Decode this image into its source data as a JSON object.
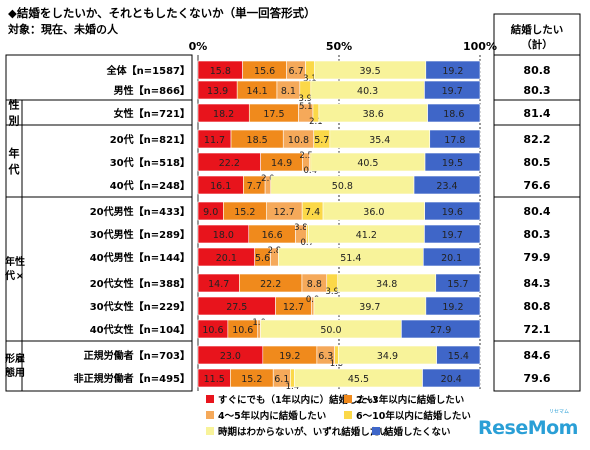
{
  "title": "◆結婚をしたいか、それともしたくないか（単一回答形式）",
  "subtitle": "対象：現在、未婚の人",
  "right_header": [
    "結婚したい",
    "（計）"
  ],
  "watermark": {
    "text": "ReseMom",
    "ruby": "リセマム"
  },
  "chart_data": {
    "type": "bar",
    "orientation": "horizontal",
    "stacked": true,
    "xlim": [
      0,
      100
    ],
    "x_ticks": [
      "0%",
      "50%",
      "100%"
    ],
    "colors": [
      "#e8141c",
      "#f08a1c",
      "#f5a95a",
      "#fbd848",
      "#f8f39a",
      "#3f66c8"
    ],
    "legend_position": "bottom",
    "series": [
      {
        "name": "すぐにでも（1年以内に）結婚したい"
      },
      {
        "name": "2～3年以内に結婚したい"
      },
      {
        "name": "4～5年以内に結婚したい"
      },
      {
        "name": "6～10年以内に結婚したい"
      },
      {
        "name": "時期はわからないが、いずれ結婚したい"
      },
      {
        "name": "結婚したくない"
      }
    ],
    "groups": [
      {
        "label": "",
        "rows": [
          0
        ]
      },
      {
        "label": "性別",
        "rows": [
          1,
          2
        ]
      },
      {
        "label": "年代",
        "rows": [
          3,
          4,
          5
        ]
      },
      {
        "label": "性×年代",
        "rows": [
          6,
          7,
          8,
          9,
          10,
          11
        ]
      },
      {
        "label": "雇用形態",
        "rows": [
          12,
          13
        ]
      }
    ],
    "rows": [
      {
        "label": "全体【n=1587】",
        "values": [
          15.8,
          15.6,
          6.7,
          3.1,
          39.5,
          19.2
        ],
        "total": "80.8"
      },
      {
        "label": "男性【n=866】",
        "values": [
          13.9,
          14.1,
          8.1,
          3.9,
          40.3,
          19.7
        ],
        "total": "80.3"
      },
      {
        "label": "女性【n=721】",
        "values": [
          18.2,
          17.5,
          5.1,
          2.1,
          38.6,
          18.6
        ],
        "total": "81.4"
      },
      {
        "label": "20代【n=821】",
        "values": [
          11.7,
          18.5,
          10.8,
          5.7,
          35.4,
          17.8
        ],
        "total": "82.2"
      },
      {
        "label": "30代【n=518】",
        "values": [
          22.2,
          14.9,
          2.5,
          0.4,
          40.5,
          19.5
        ],
        "total": "80.5"
      },
      {
        "label": "40代【n=248】",
        "values": [
          16.1,
          7.7,
          2.0,
          0.0,
          50.8,
          23.4
        ],
        "total": "76.6"
      },
      {
        "label": "20代男性【n=433】",
        "values": [
          9.0,
          15.2,
          12.7,
          7.4,
          36.0,
          19.6
        ],
        "total": "80.4"
      },
      {
        "label": "30代男性【n=289】",
        "values": [
          18.0,
          16.6,
          3.8,
          0.7,
          41.2,
          19.7
        ],
        "total": "80.3"
      },
      {
        "label": "40代男性【n=144】",
        "values": [
          20.1,
          5.6,
          2.8,
          0.0,
          51.4,
          20.1
        ],
        "total": "79.9"
      },
      {
        "label": "20代女性【n=388】",
        "values": [
          14.7,
          22.2,
          8.8,
          3.9,
          34.8,
          15.7
        ],
        "total": "84.3"
      },
      {
        "label": "30代女性【n=229】",
        "values": [
          27.5,
          12.7,
          0.9,
          0.0,
          39.7,
          19.2
        ],
        "total": "80.8"
      },
      {
        "label": "40代女性【n=104】",
        "values": [
          10.6,
          10.6,
          1.0,
          0.0,
          50.0,
          27.9
        ],
        "total": "72.1"
      },
      {
        "label": "正規労働者【n=703】",
        "values": [
          23.0,
          19.2,
          6.3,
          1.3,
          34.9,
          15.4
        ],
        "total": "84.6"
      },
      {
        "label": "非正規労働者【n=495】",
        "values": [
          11.5,
          15.2,
          6.1,
          1.4,
          45.5,
          20.4
        ],
        "total": "79.6"
      }
    ]
  }
}
